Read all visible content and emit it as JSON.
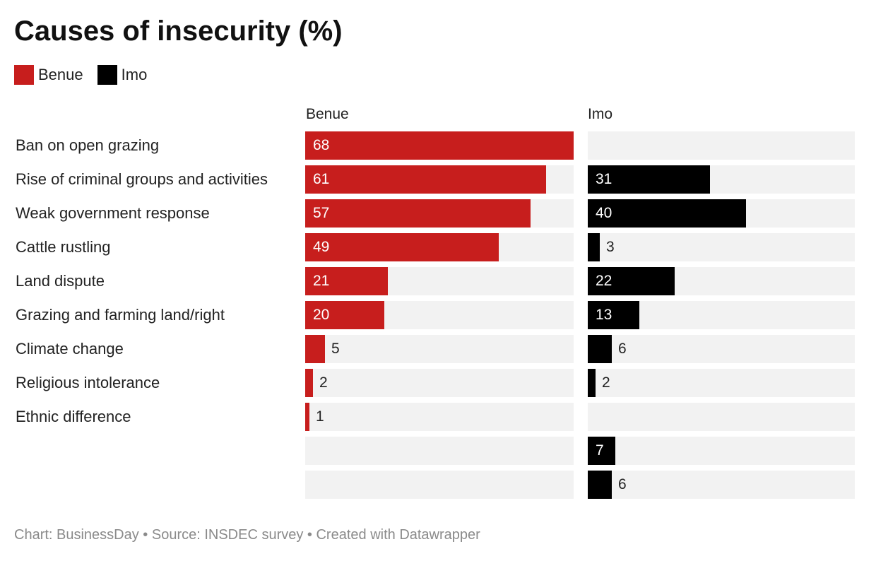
{
  "chart_data": {
    "type": "bar",
    "title": "Causes of insecurity (%)",
    "orientation": "horizontal",
    "layout": "small-multiples",
    "categories": [
      "Ban on open grazing",
      "Rise of criminal groups and activities",
      "Weak government response",
      "Cattle rustling",
      "Land dispute",
      "Grazing and farming land/right",
      "Climate change",
      "Religious intolerance",
      "Ethnic difference",
      "",
      ""
    ],
    "series": [
      {
        "name": "Benue",
        "color": "#c71e1d",
        "values": [
          68,
          61,
          57,
          49,
          21,
          20,
          5,
          2,
          1,
          null,
          null
        ]
      },
      {
        "name": "Imo",
        "color": "#000000",
        "values": [
          null,
          31,
          40,
          3,
          22,
          13,
          6,
          2,
          null,
          7,
          6
        ]
      }
    ],
    "xlim": [
      0,
      68
    ],
    "legend_position": "top-left",
    "grid": false,
    "track_color": "#f2f2f2"
  },
  "footer": "Chart: BusinessDay • Source: INSDEC survey • Created with Datawrapper"
}
